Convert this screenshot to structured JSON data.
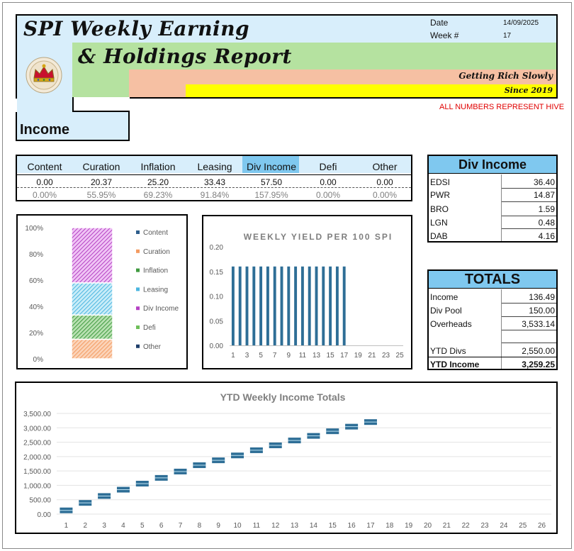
{
  "header": {
    "title_line1": "SPI Weekly Earning",
    "title_line2": "& Holdings Report",
    "tagline": "Getting Rich Slowly",
    "since": "Since 2019",
    "date_label": "Date",
    "date_value": "14/09/2025",
    "week_label": "Week #",
    "week_value": "17",
    "note": "ALL NUMBERS REPRESENT HIVE",
    "section_label": "Income",
    "logo_icon": "crown-seal-icon"
  },
  "income_table": {
    "columns": [
      "Content",
      "Curation",
      "Inflation",
      "Leasing",
      "Div Income",
      "Defi",
      "Other"
    ],
    "values": [
      "0.00",
      "20.37",
      "25.20",
      "33.43",
      "57.50",
      "0.00",
      "0.00"
    ],
    "percents": [
      "0.00%",
      "55.95%",
      "69.23%",
      "91.84%",
      "157.95%",
      "0.00%",
      "0.00%"
    ],
    "highlight_color": "#7fc8ef"
  },
  "div_income": {
    "title": "Div Income",
    "rows": [
      {
        "label": "EDSI",
        "value": "36.40"
      },
      {
        "label": "PWR",
        "value": "14.87"
      },
      {
        "label": "BRO",
        "value": "1.59"
      },
      {
        "label": "LGN",
        "value": "0.48"
      },
      {
        "label": "DAB",
        "value": "4.16"
      }
    ]
  },
  "totals": {
    "title": "TOTALS",
    "rows": [
      {
        "label": "Income",
        "value": "136.49"
      },
      {
        "label": "Div Pool",
        "value": "150.00"
      },
      {
        "label": "Overheads",
        "value": "3,533.14"
      },
      {
        "label": "",
        "value": ""
      },
      {
        "label": "YTD Divs",
        "value": "2,550.00"
      },
      {
        "label": "YTD Income",
        "value": "3,259.25"
      }
    ]
  },
  "chart_data": [
    {
      "type": "bar",
      "stacked": "100%",
      "y_ticks": [
        "100%",
        "80%",
        "60%",
        "40%",
        "20%",
        "0%"
      ],
      "ylim": [
        0,
        100
      ],
      "legend_placement": "right",
      "series": [
        {
          "name": "Content",
          "values": [
            0.0
          ],
          "color": "#2e5e8c"
        },
        {
          "name": "Curation",
          "values": [
            14.9
          ],
          "color": "#f39b61"
        },
        {
          "name": "Inflation",
          "values": [
            18.5
          ],
          "color": "#3f9a3f"
        },
        {
          "name": "Leasing",
          "values": [
            24.5
          ],
          "color": "#4bb6e0"
        },
        {
          "name": "Div Income",
          "values": [
            42.1
          ],
          "color": "#b542c4"
        },
        {
          "name": "Defi",
          "values": [
            0.0
          ],
          "color": "#6fbf5a"
        },
        {
          "name": "Other",
          "values": [
            0.0
          ],
          "color": "#1f3f6b"
        }
      ]
    },
    {
      "type": "bar",
      "title": "WEEKLY YIELD PER 100 SPI",
      "categories": [
        "1",
        "2",
        "3",
        "4",
        "5",
        "6",
        "7",
        "8",
        "9",
        "10",
        "11",
        "12",
        "13",
        "14",
        "15",
        "16",
        "17",
        "18",
        "19",
        "20",
        "21",
        "22",
        "23",
        "24",
        "25"
      ],
      "x_tick_labels": [
        "1",
        "3",
        "5",
        "7",
        "9",
        "11",
        "13",
        "15",
        "17",
        "19",
        "21",
        "23",
        "25"
      ],
      "y_ticks": [
        "0.20",
        "0.15",
        "0.10",
        "0.05",
        "0.00"
      ],
      "ylim": [
        0,
        0.2
      ],
      "values": [
        0.16,
        0.16,
        0.16,
        0.16,
        0.16,
        0.16,
        0.16,
        0.16,
        0.16,
        0.16,
        0.16,
        0.16,
        0.16,
        0.16,
        0.16,
        0.16,
        0.16,
        0,
        0,
        0,
        0,
        0,
        0,
        0,
        0
      ],
      "color": "#2e6e96"
    },
    {
      "type": "bar",
      "title": "YTD Weekly Income Totals",
      "categories": [
        "1",
        "2",
        "3",
        "4",
        "5",
        "6",
        "7",
        "8",
        "9",
        "10",
        "11",
        "12",
        "13",
        "14",
        "15",
        "16",
        "17",
        "18",
        "19",
        "20",
        "21",
        "22",
        "23",
        "24",
        "25",
        "26"
      ],
      "y_ticks": [
        "3,500.00",
        "3,000.00",
        "2,500.00",
        "2,000.00",
        "1,500.00",
        "1,000.00",
        "500.00",
        "0.00"
      ],
      "ylim": [
        0,
        3500
      ],
      "values": [
        130,
        390,
        630,
        850,
        1060,
        1260,
        1480,
        1700,
        1870,
        2040,
        2220,
        2390,
        2560,
        2720,
        2880,
        3040,
        3200,
        null,
        null,
        null,
        null,
        null,
        null,
        null,
        null,
        null
      ],
      "color": "#2e6e96"
    }
  ]
}
